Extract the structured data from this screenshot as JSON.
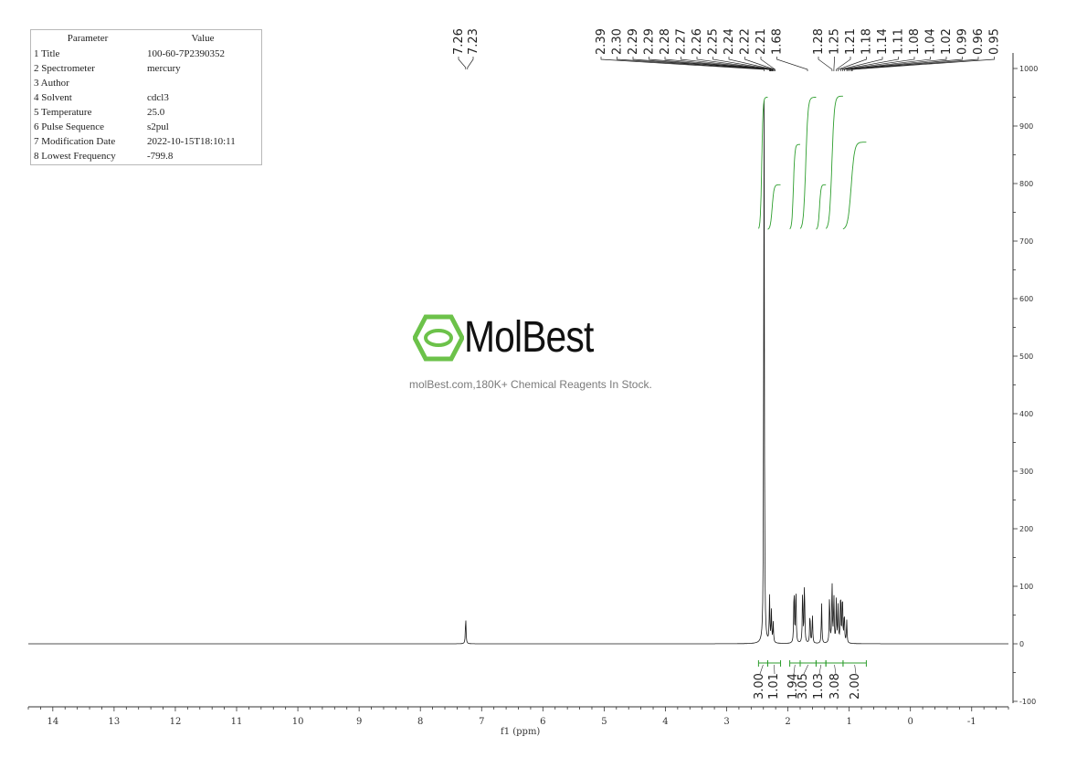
{
  "parameters": {
    "header": {
      "col1": "Parameter",
      "col2": "Value"
    },
    "rows": [
      {
        "name": "1 Title",
        "value": "100-60-7P2390352"
      },
      {
        "name": "2 Spectrometer",
        "value": "mercury"
      },
      {
        "name": "3 Author",
        "value": ""
      },
      {
        "name": "4 Solvent",
        "value": "cdcl3"
      },
      {
        "name": "5 Temperature",
        "value": "25.0"
      },
      {
        "name": "6 Pulse Sequence",
        "value": "s2pul"
      },
      {
        "name": "7 Modification Date",
        "value": "2022-10-15T18:10:11"
      },
      {
        "name": "8 Lowest Frequency",
        "value": "-799.8"
      }
    ]
  },
  "watermark": {
    "brand": "MolBest",
    "tagline": "molBest.com,180K+ Chemical Reagents In Stock.",
    "logo_color": "#6cc24a"
  },
  "colors": {
    "spectrum": "#1a1a1a",
    "integral": "#2e9e2e",
    "axis": "#333333"
  },
  "chart_data": {
    "type": "line",
    "xlabel": "f1 (ppm)",
    "x_ticks": [
      14,
      13,
      12,
      11,
      10,
      9,
      8,
      7,
      6,
      5,
      4,
      3,
      2,
      1,
      0,
      -1
    ],
    "xlim": [
      14.4,
      -1.6
    ],
    "y_ticks": [
      1000,
      900,
      800,
      700,
      600,
      500,
      400,
      300,
      200,
      100,
      0,
      -100
    ],
    "ylim": [
      -100,
      1000
    ],
    "peak_labels_group1": [
      "7.26",
      "7.23"
    ],
    "peak_labels_group2": [
      "2.39",
      "2.30",
      "2.29",
      "2.29",
      "2.28",
      "2.27",
      "2.26",
      "2.25",
      "2.24",
      "2.22",
      "2.21",
      "1.68"
    ],
    "peak_labels_group3": [
      "1.28",
      "1.25",
      "1.21",
      "1.18",
      "1.14",
      "1.11",
      "1.08",
      "1.04",
      "1.02",
      "0.99",
      "0.96",
      "0.95"
    ],
    "peaks": [
      {
        "ppm": 7.26,
        "height": 48
      },
      {
        "ppm": 2.39,
        "height": 980
      },
      {
        "ppm": 2.3,
        "height": 80
      },
      {
        "ppm": 2.27,
        "height": 55
      },
      {
        "ppm": 2.24,
        "height": 35
      },
      {
        "ppm": 1.9,
        "height": 102
      },
      {
        "ppm": 1.87,
        "height": 105
      },
      {
        "ppm": 1.76,
        "height": 95
      },
      {
        "ppm": 1.73,
        "height": 112
      },
      {
        "ppm": 1.64,
        "height": 55
      },
      {
        "ppm": 1.6,
        "height": 50
      },
      {
        "ppm": 1.45,
        "height": 70
      },
      {
        "ppm": 1.32,
        "height": 88
      },
      {
        "ppm": 1.28,
        "height": 110
      },
      {
        "ppm": 1.25,
        "height": 85
      },
      {
        "ppm": 1.21,
        "height": 75
      },
      {
        "ppm": 1.18,
        "height": 65
      },
      {
        "ppm": 1.14,
        "height": 95
      },
      {
        "ppm": 1.11,
        "height": 90
      },
      {
        "ppm": 1.08,
        "height": 55
      },
      {
        "ppm": 1.04,
        "height": 40
      }
    ],
    "integrals": [
      {
        "label": "3.00",
        "from": 2.48,
        "to": 2.33
      },
      {
        "label": "1.01",
        "from": 2.33,
        "to": 2.12
      },
      {
        "label": "1.94",
        "from": 1.97,
        "to": 1.8
      },
      {
        "label": "3.05",
        "from": 1.8,
        "to": 1.54
      },
      {
        "label": "1.03",
        "from": 1.54,
        "to": 1.38
      },
      {
        "label": "3.08",
        "from": 1.38,
        "to": 1.1
      },
      {
        "label": "2.00",
        "from": 1.1,
        "to": 0.72
      }
    ]
  }
}
